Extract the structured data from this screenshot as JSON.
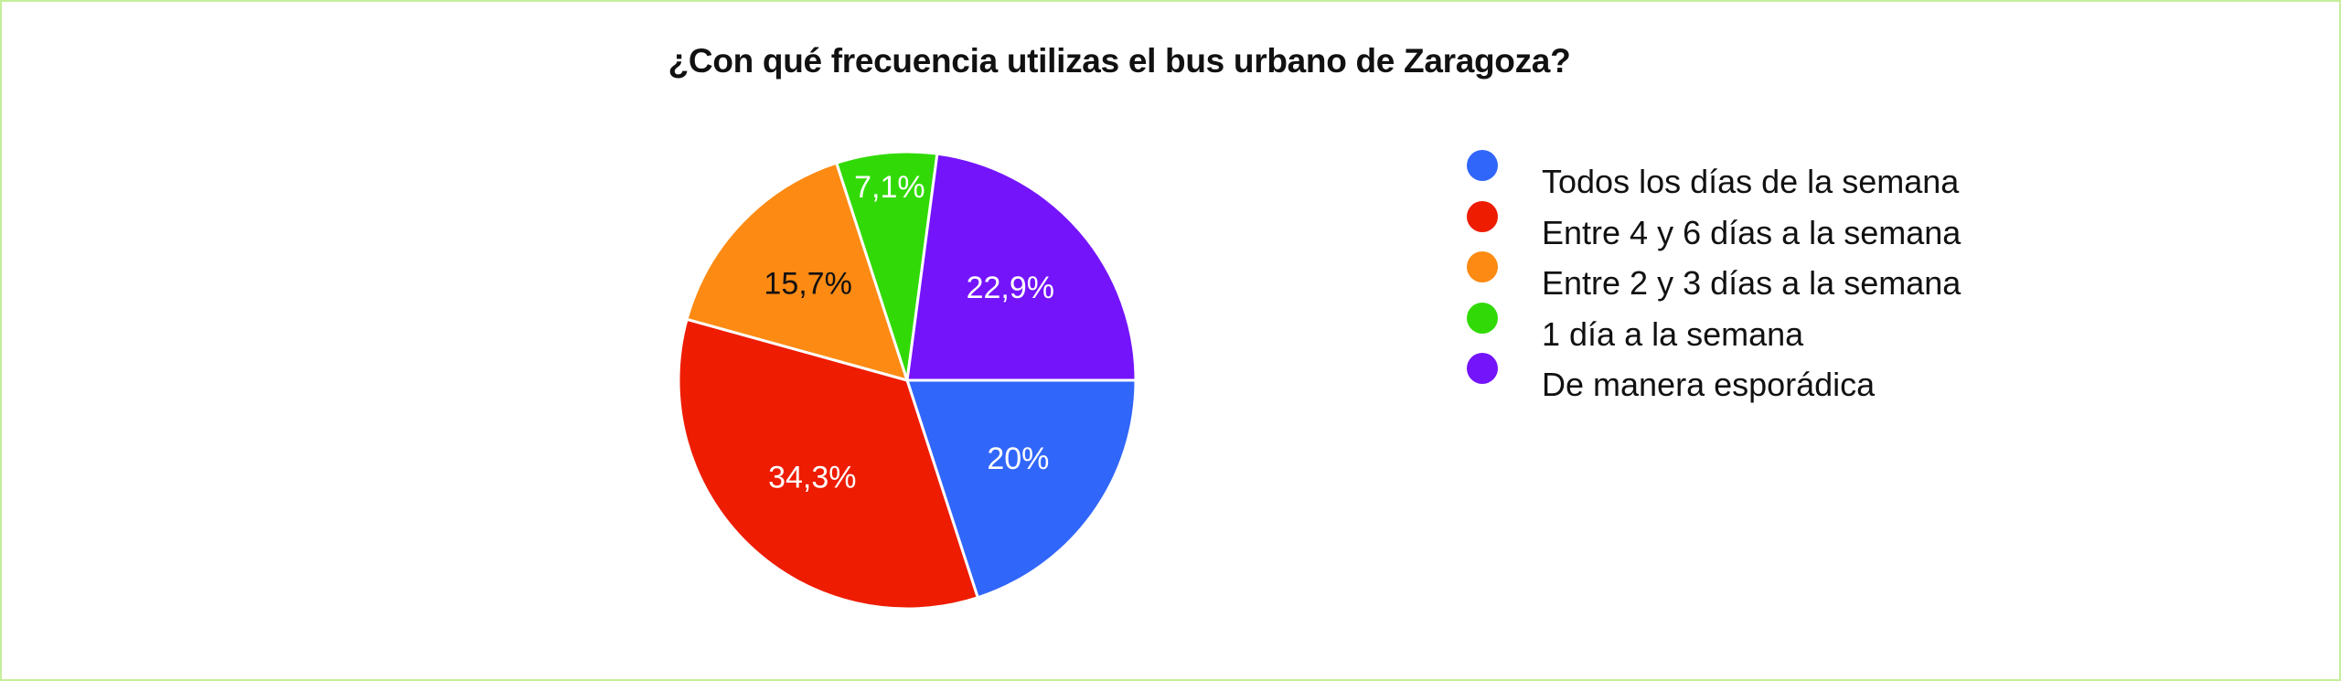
{
  "chart_data": {
    "type": "pie",
    "title": "¿Con qué frecuencia utilizas el bus urbano de Zaragoza?",
    "slices": [
      {
        "label": "Todos los días de la semana",
        "value": 20.0,
        "display": "20%",
        "color": "#3166fb",
        "text_color": "#ffffff"
      },
      {
        "label": "Entre 4 y 6 días a la semana",
        "value": 34.3,
        "display": "34,3%",
        "color": "#ee1c01",
        "text_color": "#ffffff"
      },
      {
        "label": "Entre 2 y 3 días a la semana",
        "value": 15.7,
        "display": "15,7%",
        "color": "#fd8a13",
        "text_color": "#111111"
      },
      {
        "label": "1 día a la semana",
        "value": 7.1,
        "display": "7,1%",
        "color": "#31da06",
        "text_color": "#ffffff"
      },
      {
        "label": "De manera esporádica",
        "value": 22.9,
        "display": "22,9%",
        "color": "#7414fb",
        "text_color": "#ffffff"
      }
    ],
    "start_angle_deg": 90,
    "direction": "clockwise",
    "legend_position": "right"
  }
}
